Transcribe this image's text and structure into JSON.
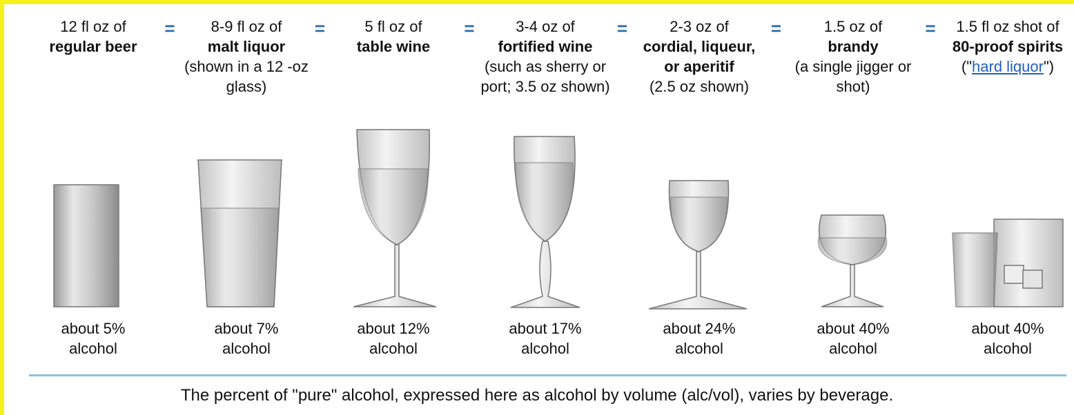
{
  "separator": "=",
  "drinks": [
    {
      "amount": "12 fl oz of",
      "name": "regular beer",
      "alcohol": "about 5% alcohol"
    },
    {
      "amount": "8-9 fl oz of",
      "name": "malt liquor",
      "note": "(shown in a 12 -oz glass)",
      "alcohol": "about 7% alcohol"
    },
    {
      "amount": "5 fl oz of",
      "name": "table wine",
      "alcohol": "about 12% alcohol"
    },
    {
      "amount": "3-4 oz of",
      "name": "fortified wine",
      "note": "(such as sherry or port; 3.5 oz shown)",
      "alcohol": "about 17% alcohol"
    },
    {
      "amount": "2-3 oz of",
      "name": "cordial, liqueur, or aperitif",
      "note": "(2.5 oz shown)",
      "alcohol": "about 24% alcohol"
    },
    {
      "amount": "1.5 oz of",
      "name": "brandy",
      "note": "(a single jigger or shot)",
      "alcohol": "about 40% alcohol"
    },
    {
      "amount": "1.5 fl oz shot of",
      "name": "80-proof spirits",
      "note_prefix": "(\"",
      "note_link": "hard liquor",
      "note_suffix": "\")",
      "alcohol": "about 40% alcohol"
    }
  ],
  "caption": "The percent of \"pure\" alcohol, expressed here as alcohol by volume (alc/vol), varies by beverage."
}
